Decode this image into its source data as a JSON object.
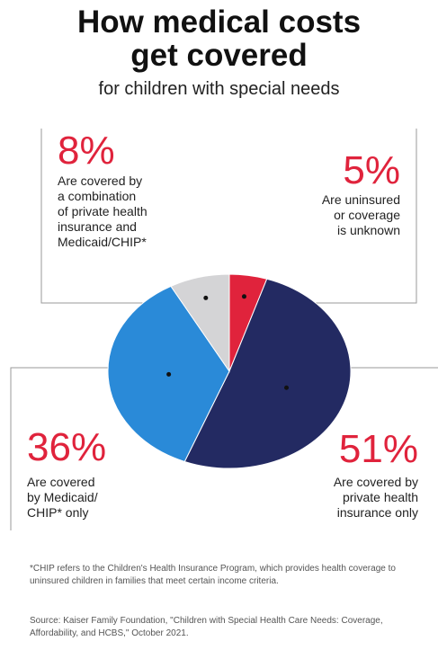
{
  "header": {
    "title_line1": "How medical costs",
    "title_line2": "get covered",
    "subtitle": "for children with special needs"
  },
  "colors": {
    "accent_red": "#e0233c",
    "navy": "#232a62",
    "blue": "#2a8ad8",
    "gray": "#d4d4d6",
    "leader": "#9a9a9a"
  },
  "chart_data": {
    "type": "pie",
    "title": "How medical costs get covered",
    "subtitle": "for children with special needs",
    "slices": [
      {
        "label": "Are uninsured or coverage is unknown",
        "value": 5,
        "display": "5%",
        "color": "#e0233c"
      },
      {
        "label": "Are covered by private health insurance only",
        "value": 51,
        "display": "51%",
        "color": "#232a62"
      },
      {
        "label": "Are covered by Medicaid/CHIP* only",
        "value": 36,
        "display": "36%",
        "color": "#2a8ad8"
      },
      {
        "label": "Are covered by a combination of private health insurance and Medicaid/CHIP*",
        "value": 8,
        "display": "8%",
        "color": "#d4d4d6"
      }
    ]
  },
  "callouts": {
    "combo": {
      "pct": "8%",
      "lines": [
        "Are covered by",
        "a combination",
        "of private health",
        "insurance and",
        "Medicaid/CHIP*"
      ]
    },
    "uninsured": {
      "pct": "5%",
      "lines": [
        "Are uninsured",
        "or coverage",
        "is unknown"
      ]
    },
    "medicaid": {
      "pct": "36%",
      "lines": [
        "Are covered",
        "by Medicaid/",
        "CHIP* only"
      ]
    },
    "private": {
      "pct": "51%",
      "lines": [
        "Are covered by",
        "private health",
        "insurance only"
      ]
    }
  },
  "footnote": "*CHIP refers to the Children's Health Insurance Program, which provides health coverage to uninsured children in families that meet certain income criteria.",
  "source": "Source: Kaiser Family Foundation, \"Children with Special Health Care Needs: Coverage, Affordability, and HCBS,\" October 2021."
}
